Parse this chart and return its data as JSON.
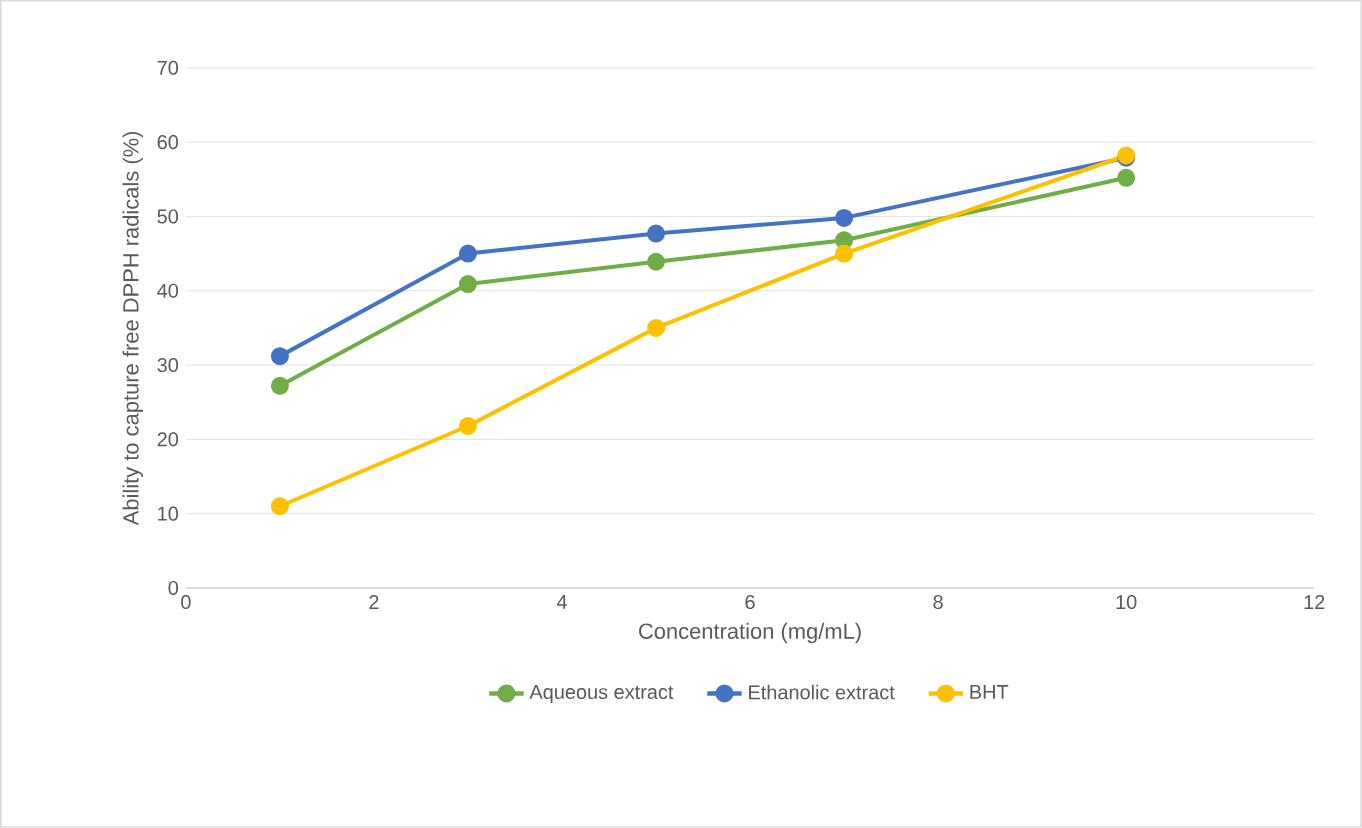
{
  "chart_data": {
    "type": "line",
    "xlabel": "Concentration (mg/mL)",
    "ylabel": "Ability to capture free DPPH radicals (%)",
    "x": [
      1,
      3,
      5,
      7,
      10
    ],
    "series": [
      {
        "name": "Aqueous extract",
        "color": "#70ad47",
        "values": [
          27.2,
          40.9,
          43.9,
          46.8,
          55.2
        ]
      },
      {
        "name": "Ethanolic extract",
        "color": "#4472c4",
        "values": [
          31.2,
          45,
          47.7,
          49.8,
          57.9
        ]
      },
      {
        "name": "BHT",
        "color": "#ffc000",
        "values": [
          11,
          21.8,
          35,
          45,
          58.2
        ]
      }
    ],
    "xlim": [
      0,
      12
    ],
    "xticks": [
      0,
      2,
      4,
      6,
      8,
      10,
      12
    ],
    "ylim": [
      0,
      70
    ],
    "yticks": [
      0,
      10,
      20,
      30,
      40,
      50,
      60,
      70
    ],
    "grid": "y",
    "legend": "bottom",
    "marker": "circle",
    "line_style": "solid"
  }
}
